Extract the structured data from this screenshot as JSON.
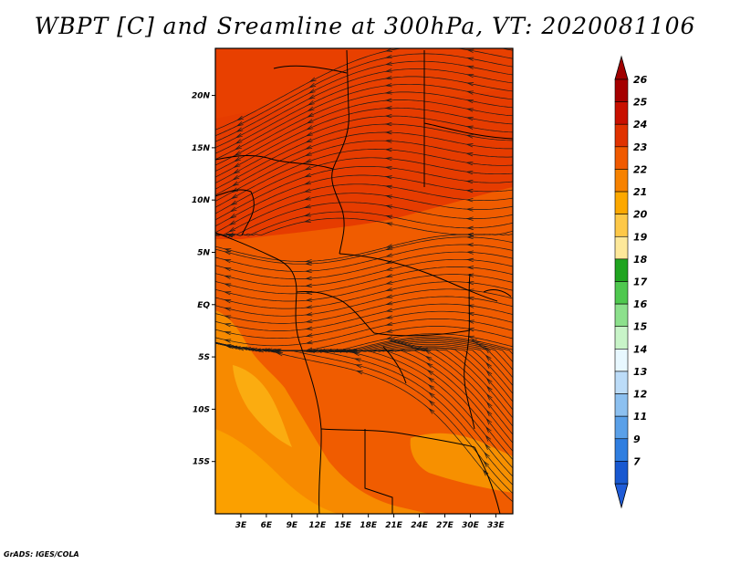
{
  "title": "WBPT [C] and Sreamline at 300hPa, VT: 2020081106",
  "credit": "GrADS: IGES/COLA",
  "map": {
    "lat_ticks": [
      "20N",
      "15N",
      "10N",
      "5N",
      "EQ",
      "5S",
      "10S",
      "15S"
    ],
    "lat_values": [
      20,
      15,
      10,
      5,
      0,
      -5,
      -10,
      -15
    ],
    "lon_ticks": [
      "3E",
      "6E",
      "9E",
      "12E",
      "15E",
      "18E",
      "21E",
      "24E",
      "27E",
      "30E",
      "33E"
    ],
    "lon_values": [
      3,
      6,
      9,
      12,
      15,
      18,
      21,
      24,
      27,
      30,
      33
    ],
    "lon_range": [
      0,
      35
    ],
    "lat_range": [
      -20,
      24.5
    ]
  },
  "colorbar": {
    "labels": [
      "26",
      "25",
      "24",
      "23",
      "22",
      "21",
      "20",
      "19",
      "18",
      "17",
      "16",
      "15",
      "14",
      "13",
      "12",
      "11",
      "9",
      "7"
    ],
    "colors": [
      "#a50000",
      "#c81000",
      "#e03200",
      "#f05a00",
      "#f78200",
      "#fca800",
      "#fdc848",
      "#fde89a",
      "#1fa41f",
      "#4fc84f",
      "#8ce08c",
      "#c8f4c8",
      "#e8f8ff",
      "#bcdcf8",
      "#8cc0f0",
      "#5aa0e8",
      "#2f7ee0",
      "#1858d0"
    ],
    "top_arrow_color": "#a00000",
    "bottom_arrow_color": "#1f5cd8"
  }
}
